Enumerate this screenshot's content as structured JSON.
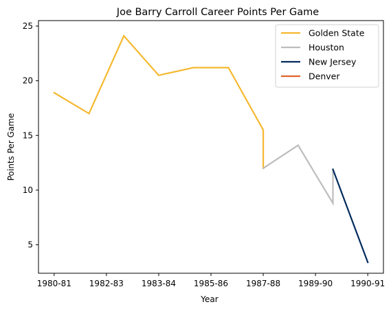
{
  "chart_data": {
    "type": "line",
    "title": "Joe Barry Carroll Career Points Per Game",
    "xlabel": "Year",
    "ylabel": "Points Per Game",
    "x_tick_labels": [
      "1980-81",
      "1982-83",
      "1983-84",
      "1985-86",
      "1987-88",
      "1989-90",
      "1990-91"
    ],
    "y_ticks": [
      5,
      10,
      15,
      20,
      25
    ],
    "xlim": [
      -0.45,
      9.45
    ],
    "ylim": [
      2.4,
      25.5
    ],
    "grid": false,
    "legend_position": "top-right",
    "x_index_note": "seasons indexed 0..9 from 1980-81 to 1990-91 (1984-85 skipped); 1987-88 and 1989-90 split between teams",
    "series": [
      {
        "name": "Golden State",
        "color": "#F6B82F",
        "points": [
          [
            0,
            18.9
          ],
          [
            1,
            17.0
          ],
          [
            2,
            24.1
          ],
          [
            3,
            20.5
          ],
          [
            4,
            21.2
          ],
          [
            5,
            21.2
          ],
          [
            6,
            15.5
          ],
          [
            6,
            12.0
          ]
        ]
      },
      {
        "name": "Houston",
        "color": "#BDBDBD",
        "points": [
          [
            6,
            12.0
          ],
          [
            7,
            14.1
          ],
          [
            8,
            8.8
          ],
          [
            8,
            11.9
          ]
        ]
      },
      {
        "name": "New Jersey",
        "color": "#002A5C",
        "points": [
          [
            8,
            11.9
          ],
          [
            9,
            3.4
          ]
        ]
      },
      {
        "name": "Denver",
        "color": "#E0622A",
        "points": []
      }
    ]
  }
}
